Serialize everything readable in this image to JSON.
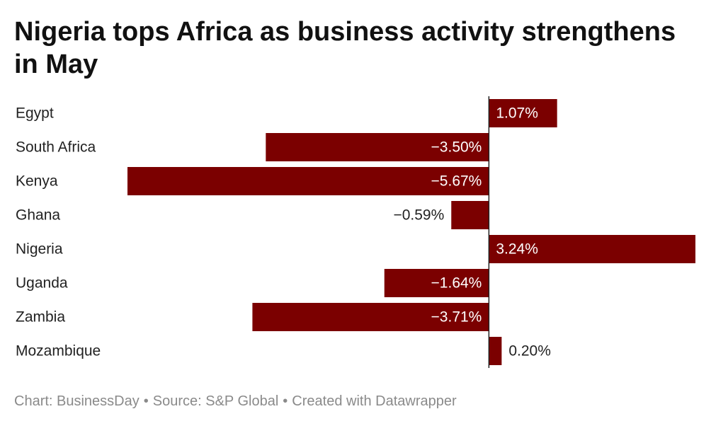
{
  "title": "Nigeria tops Africa as business activity strengthens in May",
  "footer": {
    "chart_credit": "Chart: BusinessDay",
    "source": "Source: S&P Global",
    "tool": "Created with Datawrapper",
    "separator": "•"
  },
  "colors": {
    "bar": "#7b0000",
    "axis": "#222222",
    "label_inside": "#ffffff",
    "label_outside": "#222222"
  },
  "chart_data": {
    "type": "bar",
    "orientation": "horizontal",
    "categories": [
      "Egypt",
      "South Africa",
      "Kenya",
      "Ghana",
      "Nigeria",
      "Uganda",
      "Zambia",
      "Mozambique"
    ],
    "values": [
      1.07,
      -3.5,
      -5.67,
      -0.59,
      3.24,
      -1.64,
      -3.71,
      0.2
    ],
    "value_labels": [
      "1.07%",
      "−3.50%",
      "−5.67%",
      "−0.59%",
      "3.24%",
      "−1.64%",
      "−3.71%",
      "0.20%"
    ],
    "xlim": [
      -5.67,
      3.24
    ],
    "grid": false,
    "title": "Nigeria tops Africa as business activity strengthens in May",
    "xlabel": "",
    "ylabel": ""
  }
}
